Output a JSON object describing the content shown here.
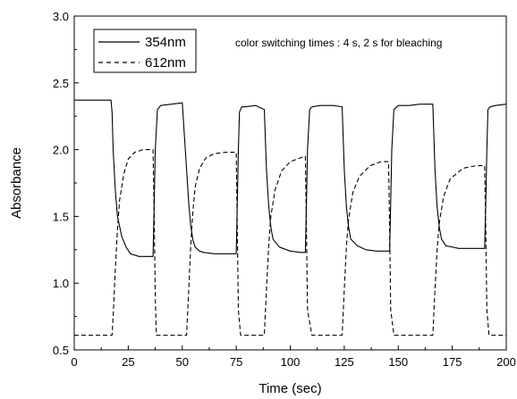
{
  "chart_data": {
    "type": "line",
    "title": "",
    "xlabel": "Time (sec)",
    "ylabel": "Absorbance",
    "xlim": [
      0,
      200
    ],
    "ylim": [
      0.5,
      3.0
    ],
    "x_ticks": [
      0,
      25,
      50,
      75,
      100,
      125,
      150,
      175,
      200
    ],
    "y_ticks": [
      0.5,
      1.0,
      1.5,
      2.0,
      2.5,
      3.0
    ],
    "grid": false,
    "legend_position": "top-left",
    "annotation": "color switching times : 4 s, 2 s for bleaching",
    "series": [
      {
        "name": "354nm",
        "style": "solid",
        "color": "#000000",
        "x": [
          0,
          16,
          17,
          17.5,
          18,
          19,
          20,
          22,
          24,
          26,
          30,
          35,
          36.5,
          37,
          37.5,
          38.5,
          40,
          45,
          50,
          52,
          53,
          54,
          55,
          56,
          58,
          60,
          65,
          70,
          75,
          75.5,
          76,
          76.5,
          77.5,
          79,
          84,
          88,
          89,
          90,
          91,
          92,
          95,
          100,
          105,
          107,
          107.5,
          108,
          109,
          110,
          114,
          120,
          124,
          125,
          126,
          127,
          128,
          131,
          135,
          140,
          145,
          146,
          146.5,
          147,
          148,
          150,
          155,
          160,
          166,
          167,
          168,
          169,
          170,
          172,
          178,
          185,
          190,
          190.5,
          191,
          191.5,
          192.5,
          195,
          200
        ],
        "y": [
          2.37,
          2.37,
          2.37,
          2.28,
          2.0,
          1.7,
          1.5,
          1.35,
          1.27,
          1.22,
          1.2,
          1.2,
          1.2,
          1.6,
          2.0,
          2.3,
          2.33,
          2.34,
          2.35,
          1.85,
          1.6,
          1.42,
          1.32,
          1.27,
          1.24,
          1.23,
          1.22,
          1.22,
          1.22,
          1.6,
          2.0,
          2.28,
          2.32,
          2.32,
          2.33,
          2.3,
          1.85,
          1.58,
          1.42,
          1.33,
          1.27,
          1.24,
          1.23,
          1.23,
          1.6,
          2.0,
          2.3,
          2.32,
          2.33,
          2.33,
          2.32,
          1.85,
          1.57,
          1.42,
          1.33,
          1.28,
          1.25,
          1.24,
          1.24,
          1.24,
          1.6,
          2.0,
          2.3,
          2.33,
          2.33,
          2.34,
          2.34,
          1.85,
          1.57,
          1.42,
          1.33,
          1.28,
          1.26,
          1.26,
          1.26,
          1.6,
          2.0,
          2.3,
          2.32,
          2.33,
          2.34
        ]
      },
      {
        "name": "612nm",
        "style": "dashed",
        "color": "#000000",
        "x": [
          0,
          16,
          17.5,
          18,
          19,
          20,
          21,
          23,
          25,
          28,
          32,
          36.5,
          37,
          37.5,
          38,
          40,
          52,
          53,
          54,
          55,
          56,
          58,
          61,
          65,
          70,
          75,
          75.5,
          76,
          77,
          84,
          88,
          89,
          90,
          91,
          93,
          96,
          100,
          105,
          107,
          107.5,
          108,
          110,
          124,
          125,
          126,
          127,
          129,
          132,
          137,
          142,
          145.5,
          146,
          146.5,
          148,
          166,
          167,
          168,
          169,
          171,
          174,
          180,
          186,
          190,
          190.5,
          191,
          192,
          200
        ],
        "y": [
          0.61,
          0.61,
          0.61,
          0.75,
          1.1,
          1.4,
          1.62,
          1.82,
          1.93,
          1.98,
          2.0,
          2.0,
          1.5,
          0.9,
          0.61,
          0.61,
          0.61,
          0.95,
          1.3,
          1.55,
          1.72,
          1.86,
          1.94,
          1.97,
          1.98,
          1.98,
          1.4,
          0.8,
          0.61,
          0.61,
          0.61,
          0.95,
          1.28,
          1.5,
          1.7,
          1.84,
          1.91,
          1.94,
          1.95,
          1.4,
          0.8,
          0.61,
          0.61,
          0.95,
          1.28,
          1.48,
          1.68,
          1.8,
          1.88,
          1.91,
          1.91,
          1.4,
          0.8,
          0.61,
          0.61,
          0.95,
          1.25,
          1.45,
          1.65,
          1.78,
          1.86,
          1.88,
          1.88,
          1.4,
          0.8,
          0.61,
          0.61
        ]
      }
    ]
  }
}
